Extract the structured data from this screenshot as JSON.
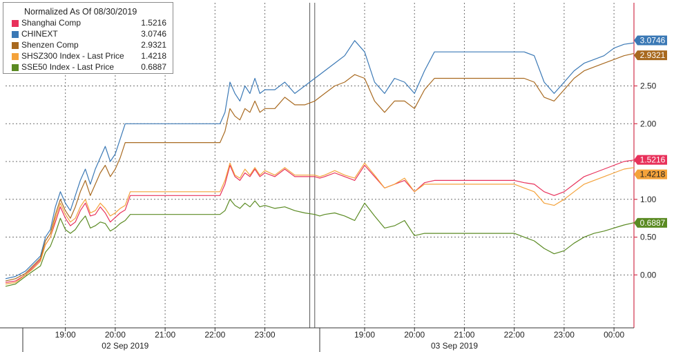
{
  "chart_data": {
    "type": "line",
    "title": "Normalized As Of 08/30/2019",
    "ylim": [
      -0.7,
      3.6
    ],
    "y_ticks": [
      0.0,
      0.5,
      1.0,
      1.5,
      2.0,
      2.5
    ],
    "y_tick_labels": [
      "0.00",
      "0.50",
      "1.00",
      "1.50",
      "2.00",
      "2.50"
    ],
    "x_ticks": [
      {
        "x": 1,
        "label": "19:00"
      },
      {
        "x": 2,
        "label": "20:00"
      },
      {
        "x": 3,
        "label": "21:00"
      },
      {
        "x": 4,
        "label": "22:00"
      },
      {
        "x": 5,
        "label": "23:00"
      },
      {
        "x": 7,
        "label": "19:00"
      },
      {
        "x": 8,
        "label": "20:00"
      },
      {
        "x": 9,
        "label": "21:00"
      },
      {
        "x": 10,
        "label": "22:00"
      },
      {
        "x": 11,
        "label": "23:00"
      },
      {
        "x": 12,
        "label": "00:00"
      }
    ],
    "date_labels": [
      {
        "x": 2.2,
        "label": "02 Sep 2019"
      },
      {
        "x": 8.8,
        "label": "03 Sep 2019"
      }
    ],
    "xlim": [
      -0.2,
      12.4
    ],
    "session_breaks": [
      6,
      5.9
    ],
    "series": [
      {
        "name": "Shanghai Comp",
        "color": "#e8305a",
        "last": "1.5216",
        "last_value": 1.5216,
        "x": [
          -0.2,
          0,
          0.2,
          0.35,
          0.5,
          0.6,
          0.7,
          0.8,
          0.9,
          1.0,
          1.1,
          1.2,
          1.3,
          1.4,
          1.5,
          1.6,
          1.7,
          1.8,
          1.9,
          2.0,
          2.1,
          2.2,
          2.3,
          2.4,
          2.5,
          3.0,
          3.5,
          4.0,
          4.1,
          4.2,
          4.3,
          4.4,
          4.5,
          4.6,
          4.7,
          4.8,
          4.9,
          5.0,
          5.2,
          5.4,
          5.6,
          5.8,
          6.0,
          6.1,
          6.2,
          6.4,
          6.6,
          6.8,
          7.0,
          7.2,
          7.4,
          7.6,
          7.8,
          8.0,
          8.2,
          8.4,
          9.0,
          9.5,
          10.0,
          10.2,
          10.4,
          10.6,
          10.8,
          11.0,
          11.2,
          11.4,
          11.6,
          11.8,
          12.0,
          12.2,
          12.4
        ],
        "y": [
          -0.1,
          -0.08,
          0.0,
          0.1,
          0.2,
          0.4,
          0.5,
          0.7,
          0.9,
          0.75,
          0.65,
          0.7,
          0.85,
          0.95,
          0.78,
          0.8,
          0.9,
          0.82,
          0.7,
          0.76,
          0.82,
          0.86,
          1.05,
          1.05,
          1.05,
          1.05,
          1.05,
          1.05,
          1.05,
          1.2,
          1.45,
          1.3,
          1.25,
          1.35,
          1.3,
          1.4,
          1.3,
          1.35,
          1.3,
          1.4,
          1.3,
          1.3,
          1.3,
          1.28,
          1.3,
          1.35,
          1.3,
          1.25,
          1.45,
          1.3,
          1.15,
          1.2,
          1.25,
          1.1,
          1.22,
          1.25,
          1.25,
          1.25,
          1.25,
          1.22,
          1.2,
          1.1,
          1.05,
          1.1,
          1.2,
          1.3,
          1.35,
          1.4,
          1.45,
          1.5,
          1.52
        ]
      },
      {
        "name": "CHINEXT",
        "color": "#3a78b5",
        "last": "3.0746",
        "last_value": 3.0746,
        "x": [
          -0.2,
          0,
          0.2,
          0.35,
          0.5,
          0.6,
          0.7,
          0.8,
          0.9,
          1.0,
          1.1,
          1.2,
          1.3,
          1.4,
          1.5,
          1.6,
          1.7,
          1.8,
          1.9,
          2.0,
          2.1,
          2.2,
          2.3,
          2.4,
          2.5,
          3.0,
          3.5,
          4.0,
          4.1,
          4.2,
          4.3,
          4.4,
          4.5,
          4.6,
          4.7,
          4.8,
          4.9,
          5.0,
          5.2,
          5.4,
          5.6,
          5.8,
          6.0,
          6.1,
          6.2,
          6.4,
          6.6,
          6.8,
          7.0,
          7.2,
          7.4,
          7.6,
          7.8,
          8.0,
          8.2,
          8.4,
          9.0,
          9.5,
          10.0,
          10.2,
          10.4,
          10.6,
          10.8,
          11.0,
          11.2,
          11.4,
          11.6,
          11.8,
          12.0,
          12.2,
          12.4
        ],
        "y": [
          -0.05,
          -0.02,
          0.05,
          0.15,
          0.25,
          0.5,
          0.6,
          0.9,
          1.1,
          0.95,
          0.85,
          1.05,
          1.25,
          1.4,
          1.2,
          1.4,
          1.55,
          1.7,
          1.5,
          1.6,
          1.8,
          2.0,
          2.0,
          2.0,
          2.0,
          2.0,
          2.0,
          2.0,
          2.0,
          2.15,
          2.55,
          2.4,
          2.3,
          2.5,
          2.4,
          2.6,
          2.4,
          2.45,
          2.45,
          2.55,
          2.4,
          2.5,
          2.6,
          2.65,
          2.7,
          2.8,
          2.9,
          3.1,
          2.95,
          2.55,
          2.4,
          2.6,
          2.55,
          2.4,
          2.7,
          2.95,
          2.95,
          2.95,
          2.95,
          2.95,
          2.9,
          2.55,
          2.4,
          2.55,
          2.7,
          2.8,
          2.85,
          2.9,
          3.0,
          3.05,
          3.07
        ]
      },
      {
        "name": "Shenzen Comp",
        "color": "#a8691f",
        "last": "2.9321",
        "last_value": 2.9321,
        "x": [
          -0.2,
          0,
          0.2,
          0.35,
          0.5,
          0.6,
          0.7,
          0.8,
          0.9,
          1.0,
          1.1,
          1.2,
          1.3,
          1.4,
          1.5,
          1.6,
          1.7,
          1.8,
          1.9,
          2.0,
          2.1,
          2.2,
          2.3,
          2.4,
          2.5,
          3.0,
          3.5,
          4.0,
          4.1,
          4.2,
          4.3,
          4.4,
          4.5,
          4.6,
          4.7,
          4.8,
          4.9,
          5.0,
          5.2,
          5.4,
          5.6,
          5.8,
          6.0,
          6.1,
          6.2,
          6.4,
          6.6,
          6.8,
          7.0,
          7.2,
          7.4,
          7.6,
          7.8,
          8.0,
          8.2,
          8.4,
          9.0,
          9.5,
          10.0,
          10.2,
          10.4,
          10.6,
          10.8,
          11.0,
          11.2,
          11.4,
          11.6,
          11.8,
          12.0,
          12.2,
          12.4
        ],
        "y": [
          -0.08,
          -0.05,
          0.02,
          0.12,
          0.22,
          0.45,
          0.55,
          0.8,
          1.0,
          0.85,
          0.75,
          0.9,
          1.1,
          1.25,
          1.05,
          1.2,
          1.35,
          1.45,
          1.3,
          1.4,
          1.55,
          1.75,
          1.75,
          1.75,
          1.75,
          1.75,
          1.75,
          1.75,
          1.75,
          1.9,
          2.2,
          2.1,
          2.05,
          2.2,
          2.15,
          2.3,
          2.15,
          2.2,
          2.2,
          2.35,
          2.25,
          2.25,
          2.3,
          2.35,
          2.4,
          2.5,
          2.55,
          2.65,
          2.6,
          2.3,
          2.15,
          2.3,
          2.3,
          2.2,
          2.45,
          2.6,
          2.6,
          2.6,
          2.6,
          2.6,
          2.55,
          2.35,
          2.3,
          2.45,
          2.6,
          2.7,
          2.75,
          2.8,
          2.85,
          2.9,
          2.93
        ]
      },
      {
        "name": "SHSZ300 Index - Last Price",
        "color": "#f4a23a",
        "last": "1.4218",
        "last_value": 1.4218,
        "x": [
          -0.2,
          0,
          0.2,
          0.35,
          0.5,
          0.6,
          0.7,
          0.8,
          0.9,
          1.0,
          1.1,
          1.2,
          1.3,
          1.4,
          1.5,
          1.6,
          1.7,
          1.8,
          1.9,
          2.0,
          2.1,
          2.2,
          2.3,
          2.4,
          2.5,
          3.0,
          3.5,
          4.0,
          4.1,
          4.2,
          4.3,
          4.4,
          4.5,
          4.6,
          4.7,
          4.8,
          4.9,
          5.0,
          5.2,
          5.4,
          5.6,
          5.8,
          6.0,
          6.1,
          6.2,
          6.4,
          6.6,
          6.8,
          7.0,
          7.2,
          7.4,
          7.6,
          7.8,
          8.0,
          8.2,
          8.4,
          9.0,
          9.5,
          10.0,
          10.2,
          10.4,
          10.6,
          10.8,
          11.0,
          11.2,
          11.4,
          11.6,
          11.8,
          12.0,
          12.2,
          12.4
        ],
        "y": [
          -0.12,
          -0.1,
          0.0,
          0.08,
          0.18,
          0.4,
          0.5,
          0.75,
          0.95,
          0.8,
          0.7,
          0.75,
          0.9,
          1.0,
          0.82,
          0.85,
          0.95,
          0.88,
          0.78,
          0.82,
          0.88,
          0.92,
          1.1,
          1.1,
          1.1,
          1.1,
          1.1,
          1.1,
          1.1,
          1.25,
          1.48,
          1.32,
          1.28,
          1.4,
          1.32,
          1.42,
          1.32,
          1.38,
          1.32,
          1.42,
          1.32,
          1.32,
          1.32,
          1.3,
          1.32,
          1.38,
          1.32,
          1.28,
          1.48,
          1.32,
          1.15,
          1.2,
          1.28,
          1.1,
          1.2,
          1.2,
          1.2,
          1.2,
          1.2,
          1.15,
          1.1,
          0.95,
          0.92,
          1.0,
          1.1,
          1.2,
          1.25,
          1.3,
          1.35,
          1.4,
          1.42
        ]
      },
      {
        "name": "SSE50 Index - Last Price",
        "color": "#5a8a22",
        "last": "0.6887",
        "last_value": 0.6887,
        "x": [
          -0.2,
          0,
          0.2,
          0.35,
          0.5,
          0.6,
          0.7,
          0.8,
          0.9,
          1.0,
          1.1,
          1.2,
          1.3,
          1.4,
          1.5,
          1.6,
          1.7,
          1.8,
          1.9,
          2.0,
          2.1,
          2.2,
          2.3,
          2.4,
          2.5,
          3.0,
          3.5,
          4.0,
          4.1,
          4.2,
          4.3,
          4.4,
          4.5,
          4.6,
          4.7,
          4.8,
          4.9,
          5.0,
          5.2,
          5.4,
          5.6,
          5.8,
          6.0,
          6.1,
          6.2,
          6.4,
          6.6,
          6.8,
          7.0,
          7.2,
          7.4,
          7.6,
          7.8,
          8.0,
          8.2,
          8.4,
          9.0,
          9.5,
          10.0,
          10.2,
          10.4,
          10.6,
          10.8,
          11.0,
          11.2,
          11.4,
          11.6,
          11.8,
          12.0,
          12.2,
          12.4
        ],
        "y": [
          -0.15,
          -0.12,
          -0.02,
          0.05,
          0.12,
          0.3,
          0.38,
          0.55,
          0.75,
          0.6,
          0.55,
          0.6,
          0.7,
          0.78,
          0.62,
          0.65,
          0.7,
          0.68,
          0.58,
          0.62,
          0.68,
          0.72,
          0.8,
          0.8,
          0.8,
          0.8,
          0.8,
          0.8,
          0.8,
          0.85,
          1.0,
          0.92,
          0.88,
          0.95,
          0.9,
          0.98,
          0.9,
          0.92,
          0.88,
          0.9,
          0.85,
          0.82,
          0.8,
          0.78,
          0.8,
          0.82,
          0.78,
          0.72,
          0.95,
          0.78,
          0.62,
          0.65,
          0.72,
          0.52,
          0.55,
          0.55,
          0.55,
          0.55,
          0.55,
          0.5,
          0.45,
          0.35,
          0.28,
          0.32,
          0.42,
          0.5,
          0.55,
          0.58,
          0.62,
          0.66,
          0.69
        ]
      }
    ]
  }
}
